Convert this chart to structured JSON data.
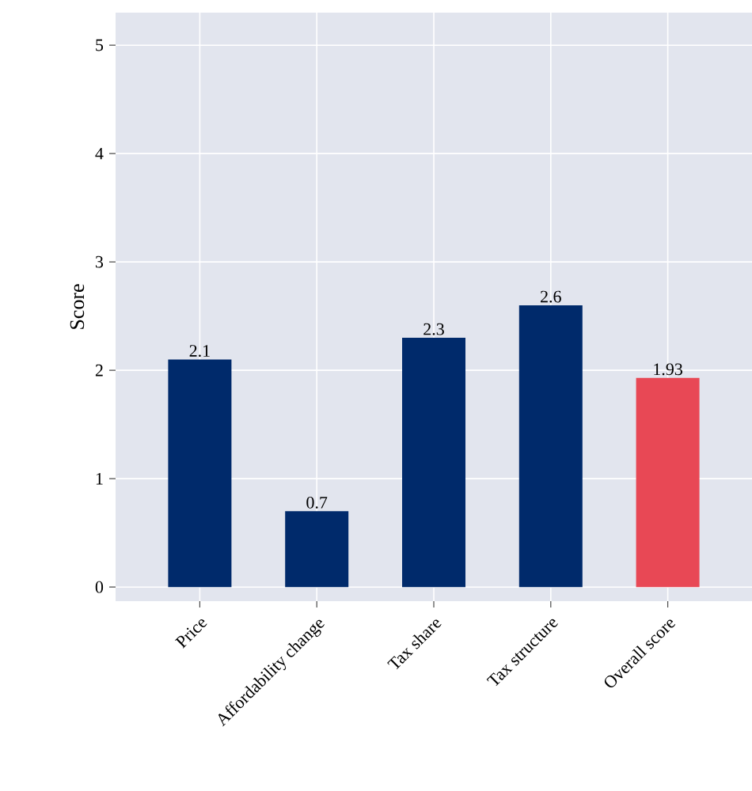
{
  "chart_data": {
    "type": "bar",
    "ylabel": "Score",
    "categories": [
      "Price",
      "Affordability change",
      "Tax share",
      "Tax structure",
      "Overall score"
    ],
    "values": [
      2.1,
      0.7,
      2.3,
      2.6,
      1.93
    ],
    "colors": [
      "#002a6b",
      "#002a6b",
      "#002a6b",
      "#002a6b",
      "#e84855"
    ],
    "ylim": [
      -0.13,
      5.3
    ],
    "yticks": [
      0,
      1,
      2,
      3,
      4,
      5
    ],
    "grid": true,
    "data_labels": true
  }
}
